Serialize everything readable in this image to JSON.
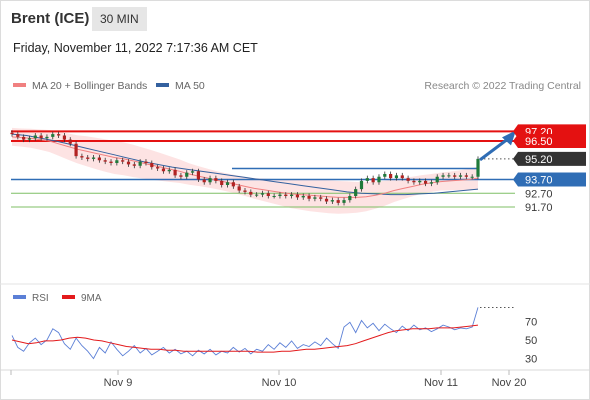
{
  "header": {
    "instrument": "Brent (ICE)",
    "timeframe": "30 MIN"
  },
  "timestamp": "Friday, November 11, 2022 7:17:36 AM CET",
  "legend": {
    "ma20_label": "MA 20 + Bollinger Bands",
    "ma50_label": "MA 50"
  },
  "credit": "Research © 2022 Trading Central",
  "rsi_legend": {
    "rsi_label": "RSI",
    "ma_label": "9MA"
  },
  "colors": {
    "ma20": "#f08080",
    "ma50": "#34619f",
    "bollinger_fill": "#fde0e0",
    "resistance": "#e41111",
    "pivot": "#2f6db5",
    "support": "#7fbf66",
    "candle_up": "#1f7a3a",
    "candle_down": "#b22222",
    "rsi": "#5b7fd6",
    "rsi_ma": "#e31a1c",
    "label_dark": "#333333"
  },
  "chart_data": [
    {
      "type": "candlestick",
      "title": "Brent (ICE) 30 MIN",
      "ylim": [
        90.8,
        98.5
      ],
      "y_ticks": [
        "97.20",
        "96.50",
        "95.20",
        "93.70",
        "92.70",
        "91.70"
      ],
      "x_tick_labels": [
        "Nov 9",
        "Nov 10",
        "Nov 11",
        "Nov 20"
      ],
      "levels": [
        {
          "label": "97.20",
          "value": 97.2,
          "kind": "resistance"
        },
        {
          "label": "96.50",
          "value": 96.5,
          "kind": "resistance"
        },
        {
          "label": "95.20",
          "value": 95.2,
          "kind": "last_price"
        },
        {
          "label": "93.70",
          "value": 93.7,
          "kind": "pivot"
        },
        {
          "label": "92.70",
          "value": 92.7,
          "kind": "support"
        },
        {
          "label": "91.70",
          "value": 91.7,
          "kind": "support"
        }
      ],
      "close_series": [
        97.0,
        96.8,
        96.6,
        96.7,
        96.9,
        96.7,
        96.8,
        97.0,
        96.9,
        96.6,
        96.3,
        95.4,
        95.3,
        95.2,
        95.3,
        95.1,
        95.0,
        94.9,
        95.1,
        95.0,
        94.8,
        94.7,
        95.0,
        94.9,
        94.6,
        94.5,
        94.3,
        94.4,
        94.0,
        93.9,
        94.2,
        94.3,
        93.7,
        93.5,
        93.8,
        93.6,
        93.3,
        93.5,
        93.2,
        92.9,
        92.8,
        92.6,
        92.6,
        92.7,
        92.5,
        92.5,
        92.6,
        92.5,
        92.6,
        92.4,
        92.5,
        92.3,
        92.4,
        92.3,
        92.1,
        92.2,
        92.0,
        92.2,
        92.5,
        93.0,
        93.6,
        93.8,
        93.5,
        93.9,
        94.1,
        93.8,
        94.0,
        93.8,
        93.6,
        93.5,
        93.6,
        93.4,
        93.5,
        93.9,
        94.0,
        94.0,
        93.9,
        94.0,
        93.9,
        93.9,
        95.2
      ],
      "ma20": [
        96.8,
        96.75,
        96.7,
        96.6,
        96.5,
        96.3,
        96.1,
        95.9,
        95.75,
        95.6,
        95.45,
        95.3,
        95.2,
        95.05,
        94.9,
        94.75,
        94.6,
        94.45,
        94.3,
        94.1,
        93.95,
        93.8,
        93.65,
        93.5,
        93.35,
        93.2,
        93.05,
        92.95,
        92.85,
        92.75,
        92.65,
        92.6,
        92.55,
        92.5,
        92.45,
        92.4,
        92.4,
        92.4,
        92.45,
        92.55,
        92.7,
        92.9,
        93.05,
        93.2,
        93.35,
        93.45,
        93.55,
        93.6,
        93.65,
        93.7,
        93.8
      ],
      "ma50": [
        97.0,
        96.9,
        96.7,
        96.5,
        96.25,
        96.0,
        95.75,
        95.5,
        95.25,
        95.0,
        94.8,
        94.6,
        94.45,
        94.3,
        94.15,
        94.0,
        93.85,
        93.7,
        93.55,
        93.4,
        93.25,
        93.1,
        92.95,
        92.8,
        92.7,
        92.65,
        92.6,
        92.6,
        92.65,
        92.7,
        92.8,
        92.9,
        93.0
      ],
      "projection": {
        "from": 95.2,
        "to": 97.2
      }
    },
    {
      "type": "line",
      "title": "RSI",
      "y_ticks": [
        "70",
        "50",
        "30"
      ],
      "series": [
        {
          "name": "RSI",
          "values": [
            55,
            42,
            38,
            47,
            52,
            45,
            50,
            62,
            58,
            46,
            40,
            52,
            44,
            38,
            30,
            42,
            36,
            48,
            40,
            33,
            38,
            44,
            36,
            41,
            34,
            38,
            42,
            36,
            40,
            35,
            38,
            33,
            39,
            35,
            40,
            34,
            38,
            36,
            42,
            37,
            41,
            35,
            40,
            38,
            45,
            40,
            47,
            42,
            49,
            41,
            45,
            43,
            48,
            44,
            52,
            46,
            41,
            64,
            69,
            58,
            71,
            63,
            68,
            60,
            67,
            62,
            58,
            65,
            60,
            66,
            61,
            63,
            59,
            62,
            66,
            64,
            61,
            63,
            62,
            64,
            85
          ]
        },
        {
          "name": "9MA",
          "values": [
            50,
            48,
            46,
            47,
            49,
            49,
            50,
            52,
            53,
            52,
            50,
            49,
            47,
            45,
            43,
            42,
            41,
            40,
            40,
            39,
            39,
            38,
            38,
            38,
            38,
            38,
            38,
            38,
            38,
            38,
            37,
            37,
            37,
            38,
            38,
            39,
            40,
            40,
            41,
            42,
            43,
            44,
            46,
            49,
            52,
            55,
            58,
            60,
            61,
            62,
            62,
            62,
            63,
            63,
            63,
            64,
            65,
            66
          ]
        }
      ]
    }
  ]
}
